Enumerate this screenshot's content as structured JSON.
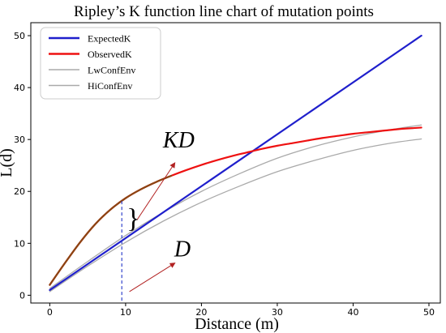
{
  "chart_data": {
    "type": "line",
    "title": "Ripley’s K function line chart of mutation points",
    "xlabel": "Distance (m)",
    "ylabel": "L(d)",
    "xlim": [
      -2.5,
      51.5
    ],
    "ylim": [
      -1.5,
      52.5
    ],
    "x_ticks": [
      0,
      10,
      20,
      30,
      40,
      50
    ],
    "y_ticks": [
      0,
      10,
      20,
      30,
      40,
      50
    ],
    "grid": false,
    "legend_position": "top-left",
    "series": [
      {
        "name": "ExpectedK",
        "color": "#1f1fcc",
        "x": [
          0,
          49
        ],
        "y": [
          1,
          50
        ]
      },
      {
        "name": "ObservedK",
        "color": "#ee1111",
        "x": [
          0,
          2,
          4,
          6,
          8,
          10,
          12,
          14,
          16,
          18,
          20,
          22,
          24,
          26,
          28,
          30,
          32,
          34,
          36,
          38,
          40,
          42,
          44,
          46,
          48,
          49
        ],
        "y": [
          2,
          6.2,
          10.2,
          13.7,
          16.5,
          18.7,
          20.4,
          21.8,
          23,
          24.1,
          25.1,
          26,
          26.8,
          27.5,
          28.2,
          28.8,
          29.3,
          29.8,
          30.3,
          30.7,
          31.1,
          31.4,
          31.7,
          32,
          32.2,
          32.3
        ]
      },
      {
        "name": "LwConfEnv",
        "color": "#aaaaaa",
        "x": [
          0,
          5,
          10,
          15,
          20,
          25,
          30,
          35,
          40,
          45,
          49
        ],
        "y": [
          0.7,
          5.6,
          10.2,
          14.3,
          17.9,
          21,
          23.8,
          26,
          27.9,
          29.3,
          30.1
        ]
      },
      {
        "name": "HiConfEnv",
        "color": "#aaaaaa",
        "x": [
          0,
          5,
          10,
          15,
          20,
          25,
          30,
          35,
          40,
          45,
          49
        ],
        "y": [
          1.3,
          6.5,
          11.5,
          16,
          20,
          23.4,
          26.4,
          28.7,
          30.5,
          31.9,
          32.8
        ]
      }
    ],
    "overlay_curve": {
      "color": "#8b4513",
      "x": [
        0,
        2,
        4,
        6,
        8,
        10,
        12,
        14,
        16
      ],
      "y": [
        2,
        6.2,
        10.2,
        13.7,
        16.5,
        18.7,
        20.4,
        21.8,
        23
      ]
    },
    "marker_line_x": 9.5,
    "annotations": [
      {
        "text": "KD",
        "x": 17,
        "y": 28.5,
        "arrow_from": [
          11.5,
          14.5
        ],
        "arrow_to": [
          16.5,
          25.5
        ]
      },
      {
        "text": "D",
        "x": 17.5,
        "y": 7.5,
        "arrow_from": [
          10.5,
          0.7
        ],
        "arrow_to": [
          16.5,
          6.2
        ]
      },
      {
        "text": "}",
        "x": 11,
        "y": 14.5
      }
    ]
  }
}
